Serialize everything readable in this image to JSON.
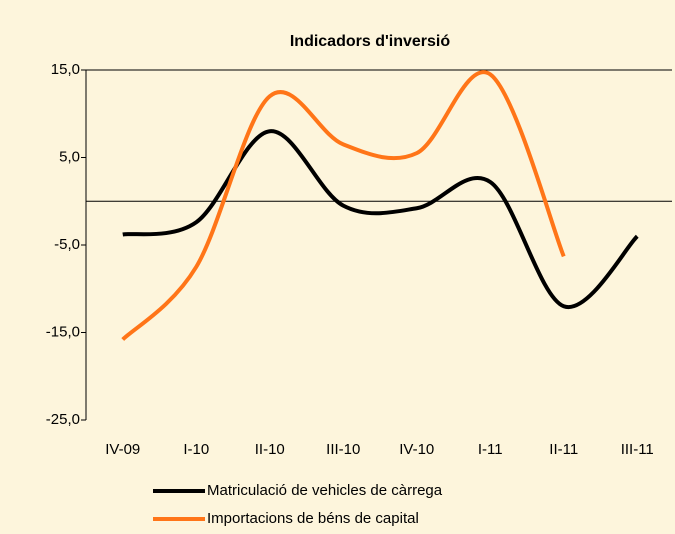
{
  "chart_data": {
    "type": "line",
    "title": "Indicadors d'inversió",
    "categories": [
      "IV-09",
      "I-10",
      "II-10",
      "III-10",
      "IV-10",
      "I-11",
      "II-11",
      "III-11"
    ],
    "series": [
      {
        "name": "Matriculació de vehicles de càrrega",
        "color": "#000000",
        "values": [
          -3.8,
          -2.4,
          8.0,
          -0.5,
          -0.8,
          2.2,
          -12.0,
          -4.0
        ]
      },
      {
        "name": "Importacions de béns de capital",
        "color": "#ff7518",
        "values": [
          -15.8,
          -7.5,
          12.0,
          6.5,
          5.5,
          14.5,
          -6.3,
          null
        ]
      }
    ],
    "ylim": [
      -25,
      15
    ],
    "yticks": [
      {
        "value": -25,
        "label": "-25,0"
      },
      {
        "value": -15,
        "label": "-15,0"
      },
      {
        "value": -5,
        "label": "-5,0"
      },
      {
        "value": 5,
        "label": "5,0"
      },
      {
        "value": 15,
        "label": "15,0"
      }
    ],
    "grid": false,
    "legend": "bottom"
  }
}
